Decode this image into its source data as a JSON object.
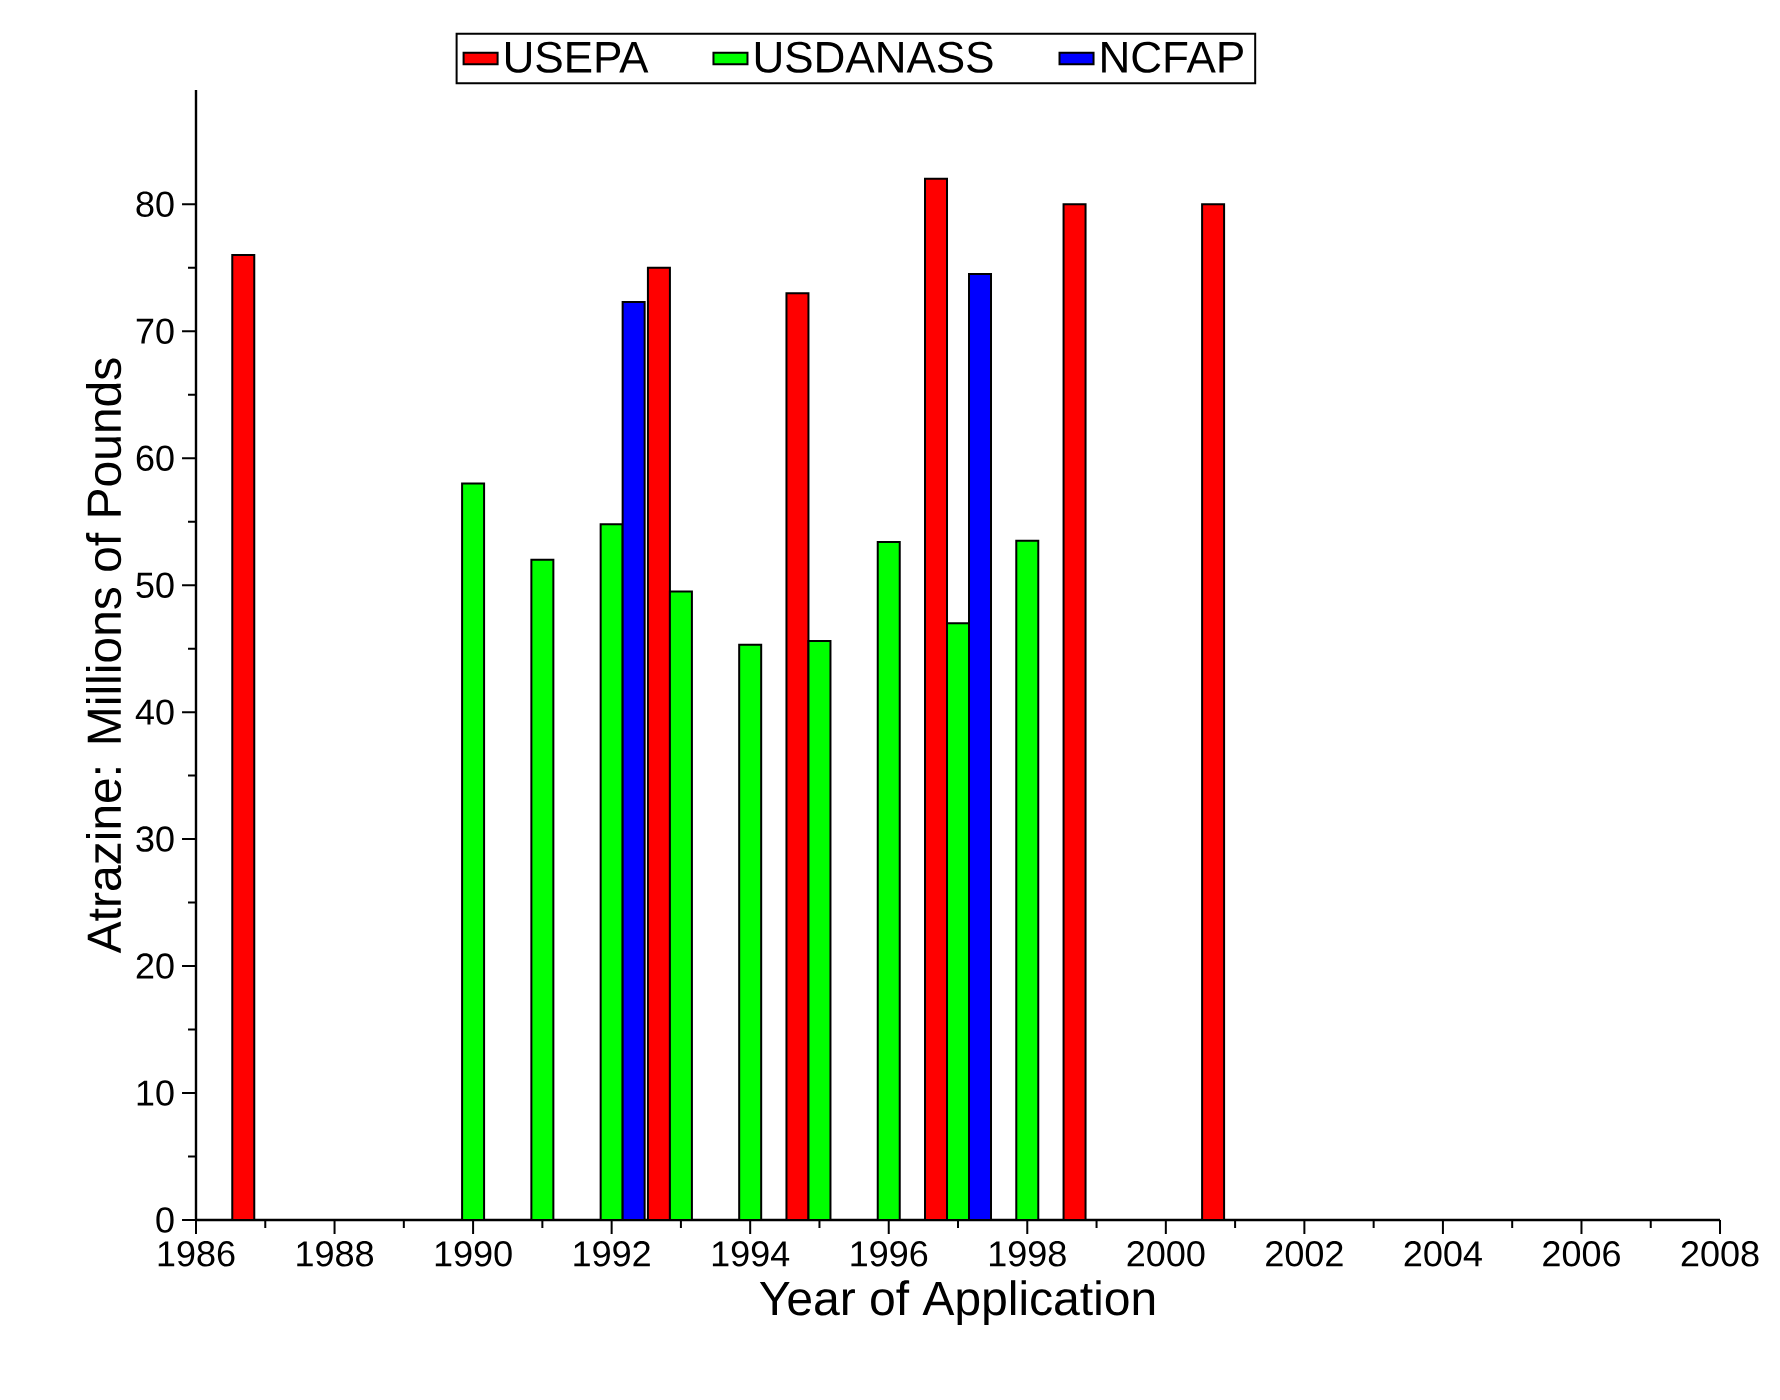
{
  "chart_data": {
    "type": "bar",
    "xlabel": "Year of Application",
    "ylabel": "Atrazine: Millions of Pounds",
    "series": [
      {
        "name": "USEPA",
        "color": "#ff0000",
        "x": [
          1987,
          1993,
          1995,
          1997,
          1999,
          2001
        ],
        "values": [
          76,
          75,
          73,
          82,
          80,
          80
        ]
      },
      {
        "name": "USDANASS",
        "color": "#00ff00",
        "x": [
          1990,
          1991,
          1992,
          1993,
          1994,
          1995,
          1996,
          1997,
          1998
        ],
        "values": [
          58,
          52,
          54.8,
          49.5,
          45.3,
          45.6,
          53.4,
          47,
          53.5
        ]
      },
      {
        "name": "NCFAP",
        "color": "#0000ff",
        "x": [
          1992,
          1997
        ],
        "values": [
          72.3,
          74.5
        ]
      }
    ],
    "xlim": [
      1986,
      2008
    ],
    "xticks": [
      1986,
      1988,
      1990,
      1992,
      1994,
      1996,
      1998,
      2000,
      2002,
      2004,
      2006,
      2008
    ],
    "ylim": [
      0,
      89
    ],
    "yticks": [
      0,
      10,
      20,
      30,
      40,
      50,
      60,
      70,
      80
    ],
    "legend": "top"
  }
}
